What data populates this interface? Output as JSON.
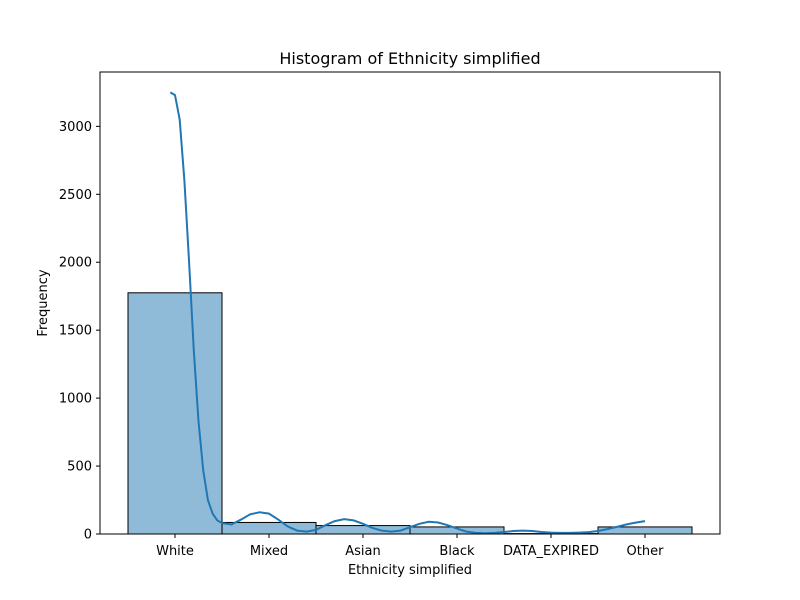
{
  "chart_data": {
    "type": "bar",
    "title": "Histogram of Ethnicity simplified",
    "xlabel": "Ethnicity simplified",
    "ylabel": "Frequency",
    "categories": [
      "White",
      "Mixed",
      "Asian",
      "Black",
      "DATA_EXPIRED",
      "Other"
    ],
    "values": [
      1775,
      85,
      62,
      52,
      3,
      52
    ],
    "yticks": [
      0,
      500,
      1000,
      1500,
      2000,
      2500,
      3000
    ],
    "ylim": [
      0,
      3400
    ],
    "kde": {
      "x": [
        -0.05,
        0.0,
        0.05,
        0.1,
        0.15,
        0.2,
        0.25,
        0.3,
        0.35,
        0.4,
        0.45,
        0.5,
        0.6,
        0.7,
        0.8,
        0.9,
        1.0,
        1.1,
        1.2,
        1.3,
        1.4,
        1.5,
        1.6,
        1.7,
        1.8,
        1.9,
        2.0,
        2.1,
        2.2,
        2.3,
        2.4,
        2.5,
        2.6,
        2.7,
        2.8,
        2.9,
        3.0,
        3.1,
        3.2,
        3.3,
        3.4,
        3.5,
        3.6,
        3.7,
        3.8,
        3.9,
        4.0,
        4.1,
        4.2,
        4.3,
        4.4,
        4.5,
        4.6,
        4.7,
        4.8,
        4.9,
        5.0
      ],
      "y": [
        3250,
        3230,
        3050,
        2600,
        2000,
        1350,
        830,
        470,
        250,
        150,
        100,
        80,
        70,
        105,
        145,
        160,
        150,
        105,
        55,
        25,
        18,
        30,
        65,
        95,
        110,
        100,
        75,
        45,
        25,
        18,
        25,
        50,
        75,
        90,
        85,
        65,
        40,
        18,
        8,
        6,
        8,
        15,
        22,
        25,
        22,
        15,
        10,
        8,
        8,
        10,
        14,
        22,
        36,
        52,
        70,
        84,
        95
      ]
    },
    "colors": {
      "bar_fill": "#8fbbd9",
      "bar_edge": "#000000",
      "kde_line": "#1f77b4"
    },
    "grid": false,
    "legend": "none"
  }
}
